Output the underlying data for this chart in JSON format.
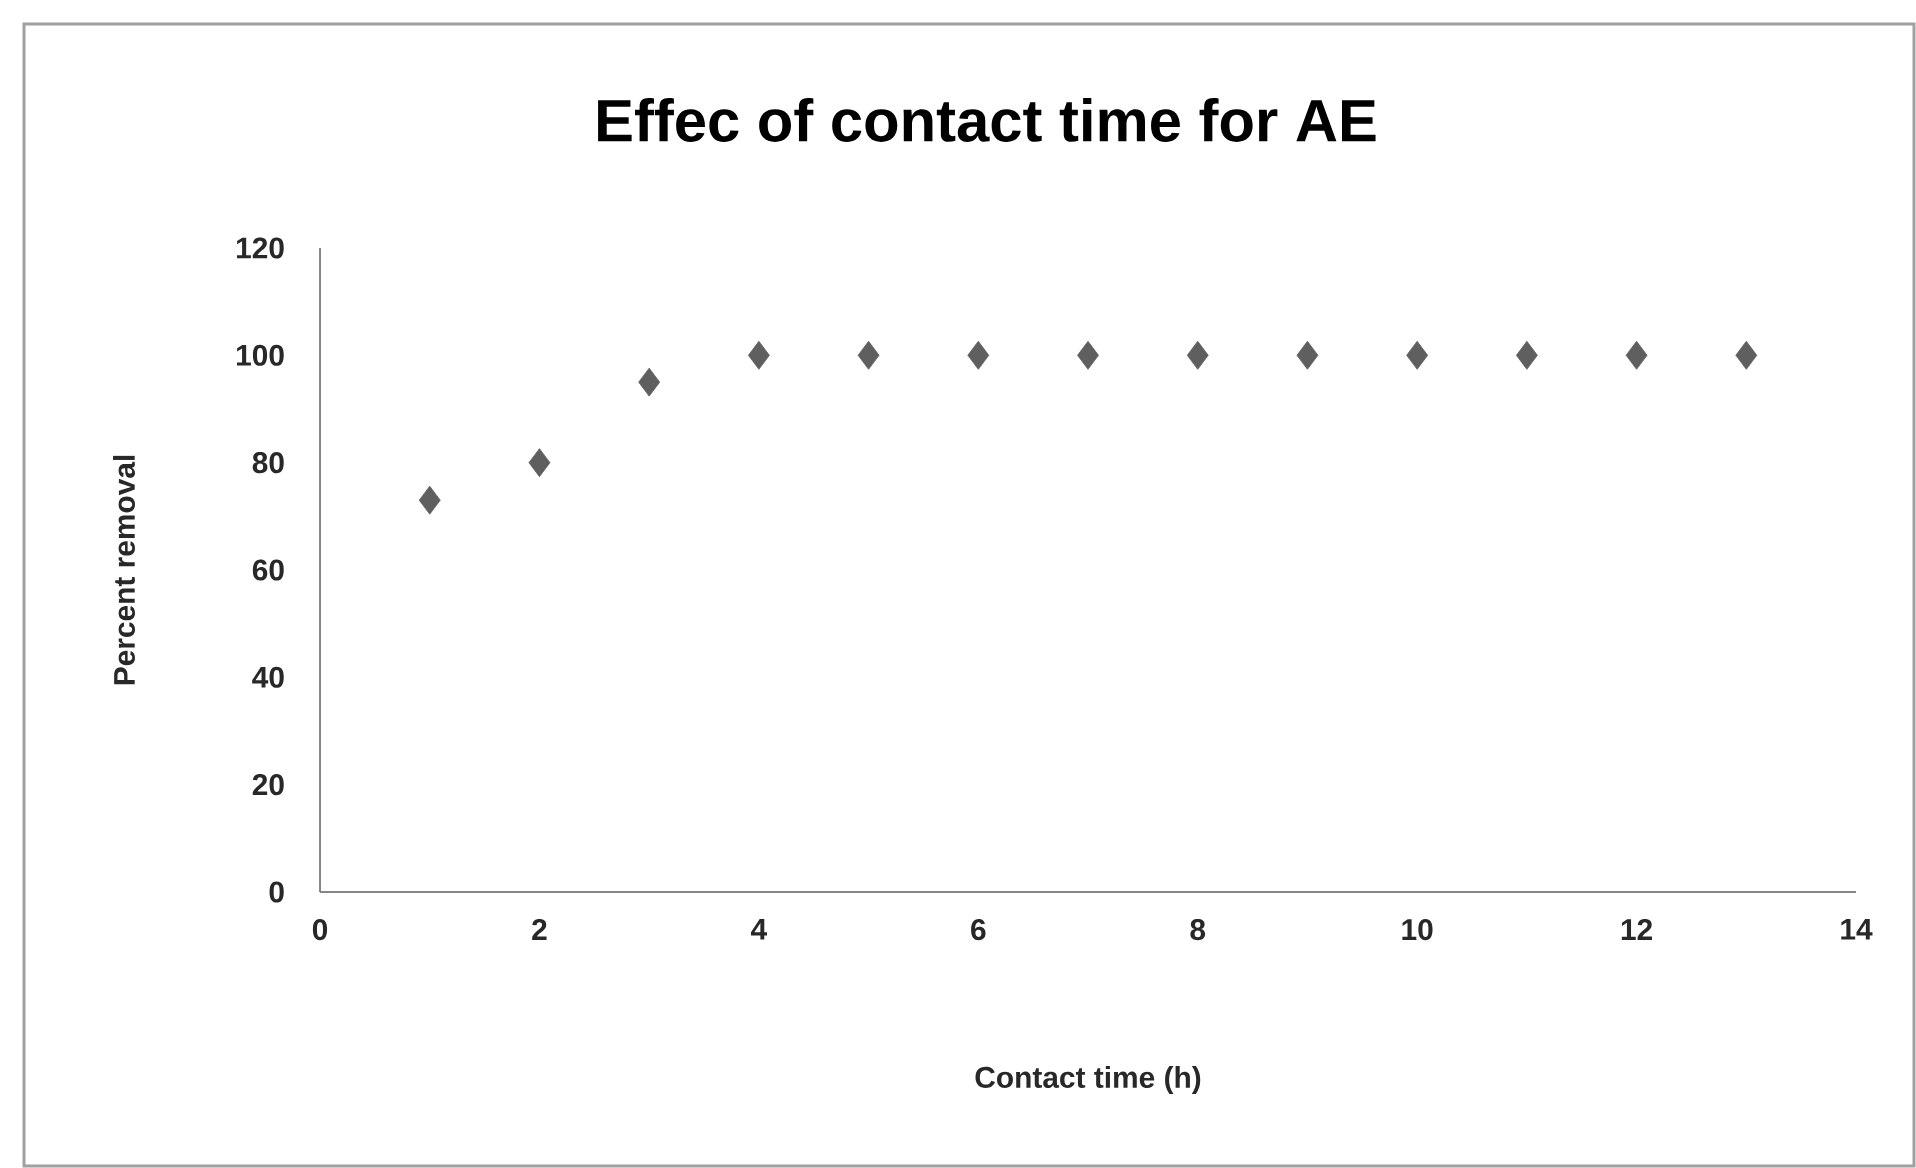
{
  "chart_data": {
    "type": "scatter",
    "title": "Effec of contact time for AE",
    "xlabel": "Contact time (h)",
    "ylabel": "Percent removal",
    "x": [
      1,
      2,
      3,
      4,
      5,
      6,
      7,
      8,
      9,
      10,
      11,
      12,
      13
    ],
    "series": [
      {
        "color": "#5f5f5f",
        "values": [
          73,
          80,
          95,
          100,
          100,
          100,
          100,
          100,
          100,
          100,
          100,
          100,
          100
        ]
      }
    ],
    "xlim": [
      0,
      14
    ],
    "xticks": [
      0,
      2,
      4,
      6,
      8,
      10,
      12,
      14
    ],
    "ylim": [
      0,
      120
    ],
    "yticks": [
      0,
      20,
      40,
      60,
      80,
      100,
      120
    ],
    "marker": "diamond",
    "grid": false
  }
}
